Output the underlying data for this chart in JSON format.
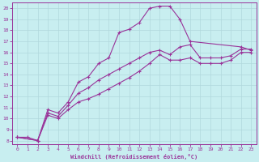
{
  "xlabel": "Windchill (Refroidissement éolien,°C)",
  "bg_color": "#c8eef0",
  "line_color": "#993399",
  "grid_color": "#b0d8dc",
  "xlim_min": -0.5,
  "xlim_max": 23.5,
  "ylim_min": 7.7,
  "ylim_max": 20.5,
  "yticks": [
    8,
    9,
    10,
    11,
    12,
    13,
    14,
    15,
    16,
    17,
    18,
    19,
    20
  ],
  "xticks": [
    0,
    1,
    2,
    3,
    4,
    5,
    6,
    7,
    8,
    9,
    10,
    11,
    12,
    13,
    14,
    15,
    16,
    17,
    18,
    19,
    20,
    21,
    22,
    23
  ],
  "line1_x": [
    0,
    1,
    2,
    3,
    4,
    5,
    6,
    7,
    8,
    9,
    10,
    11,
    12,
    13,
    14,
    15,
    16,
    17,
    22,
    23
  ],
  "line1_y": [
    8.3,
    8.3,
    8.0,
    10.8,
    10.5,
    11.5,
    13.3,
    13.8,
    15.0,
    15.5,
    17.8,
    18.1,
    18.7,
    20.0,
    20.2,
    20.2,
    19.0,
    17.0,
    16.5,
    16.2
  ],
  "line2_x": [
    0,
    2,
    3,
    4,
    5,
    6,
    7,
    8,
    9,
    10,
    11,
    12,
    13,
    14,
    15,
    16,
    17,
    18,
    19,
    20,
    21,
    22,
    23
  ],
  "line2_y": [
    8.3,
    8.0,
    10.5,
    10.2,
    11.2,
    12.3,
    12.8,
    13.5,
    14.0,
    14.5,
    15.0,
    15.5,
    16.0,
    16.2,
    15.8,
    16.5,
    16.7,
    15.5,
    15.5,
    15.5,
    15.7,
    16.3,
    16.3
  ],
  "line3_x": [
    0,
    2,
    3,
    4,
    5,
    6,
    7,
    8,
    9,
    10,
    11,
    12,
    13,
    14,
    15,
    16,
    17,
    18,
    19,
    20,
    21,
    22,
    23
  ],
  "line3_y": [
    8.3,
    8.0,
    10.3,
    10.0,
    10.8,
    11.5,
    11.8,
    12.2,
    12.7,
    13.2,
    13.7,
    14.3,
    15.0,
    15.8,
    15.3,
    15.3,
    15.5,
    15.0,
    15.0,
    15.0,
    15.3,
    16.0,
    16.0
  ]
}
